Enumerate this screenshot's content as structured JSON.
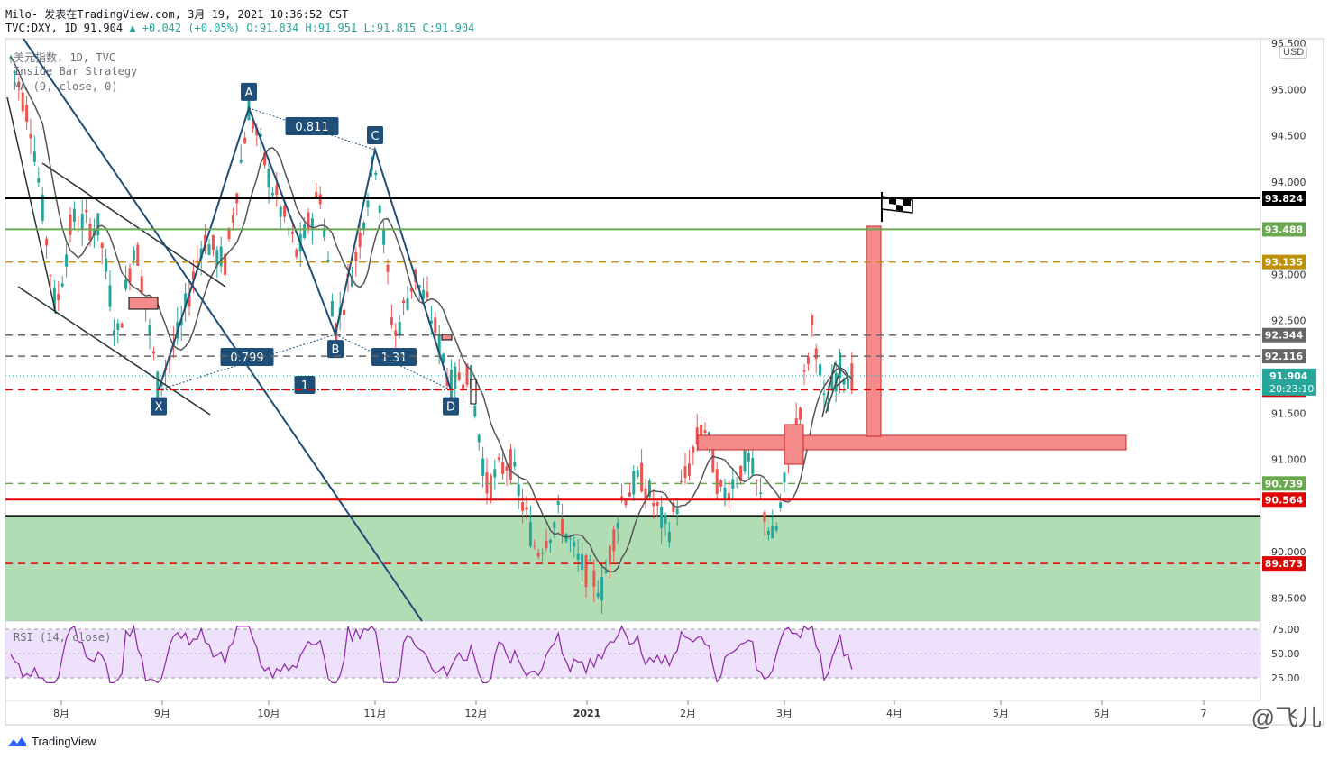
{
  "header": {
    "line1": "Milo- 发表在TradingView.com, 3月 19, 2021 10:36:52 CST",
    "symbol": "TVC:DXY, 1D",
    "last": "91.904",
    "change": "+0.042 (+0.05%)",
    "o": "O:91.834",
    "h": "H:91.951",
    "l": "L:91.815",
    "c": "C:91.904"
  },
  "legend": {
    "title": "美元指数, 1D, TVC",
    "strategy": "Inside Bar Strategy",
    "ma": "MA (9, close, 0)",
    "rsi": "RSI (14, close)"
  },
  "currency_badge": "USD",
  "footer": {
    "brand": "TradingView",
    "watermark": "@飞儿"
  },
  "colors": {
    "up": "#26a69a",
    "down": "#ef5350",
    "box": "#f48a8a",
    "zone": "#a5d6a7"
  },
  "chart_data": {
    "type": "candlestick",
    "y_range": [
      89.25,
      95.55
    ],
    "price_ticks": [
      "95.500",
      "95.000",
      "94.500",
      "94.000",
      "93.000",
      "92.500",
      "91.500",
      "91.000",
      "90.000",
      "89.500"
    ],
    "x_ticks": [
      "8月",
      "9月",
      "10月",
      "11月",
      "12月",
      "2021",
      "2月",
      "3月",
      "4月",
      "5月",
      "6月",
      "7"
    ],
    "price_levels": [
      {
        "value": 93.824,
        "label": "93.824",
        "color": "#000000",
        "style": "solid"
      },
      {
        "value": 93.488,
        "label": "93.488",
        "color": "#6aa84f",
        "style": "solid"
      },
      {
        "value": 93.135,
        "label": "93.135",
        "color": "#bf9000",
        "style": "dashed"
      },
      {
        "value": 92.344,
        "label": "92.344",
        "color": "#666666",
        "style": "dashed"
      },
      {
        "value": 92.116,
        "label": "92.116",
        "color": "#666666",
        "style": "dashed"
      },
      {
        "value": 91.753,
        "label": "91.753",
        "color": "#e00000",
        "style": "dashed"
      },
      {
        "value": 90.739,
        "label": "90.739",
        "color": "#6aa84f",
        "style": "dashed"
      },
      {
        "value": 90.564,
        "label": "90.564",
        "color": "#e00000",
        "style": "solid"
      },
      {
        "value": 89.873,
        "label": "89.873",
        "color": "#e00000",
        "style": "dashed"
      }
    ],
    "last_price": {
      "value": 91.904,
      "label": "91.904",
      "countdown": "20:23:10"
    },
    "zone": {
      "top": 90.39,
      "bottom": 89.25
    },
    "pattern_points": [
      {
        "label": "X",
        "value": 91.75
      },
      {
        "label": "A",
        "value": 94.8
      },
      {
        "label": "B",
        "value": 92.35
      },
      {
        "label": "C",
        "value": 94.35
      },
      {
        "label": "D",
        "value": 91.75
      }
    ],
    "ratios": [
      "0.811",
      "0.799",
      "1.31",
      "1"
    ],
    "rsi": {
      "levels": [
        75,
        50,
        25
      ],
      "tick_labels": [
        "75.00",
        "50.00",
        "25.00"
      ]
    }
  }
}
